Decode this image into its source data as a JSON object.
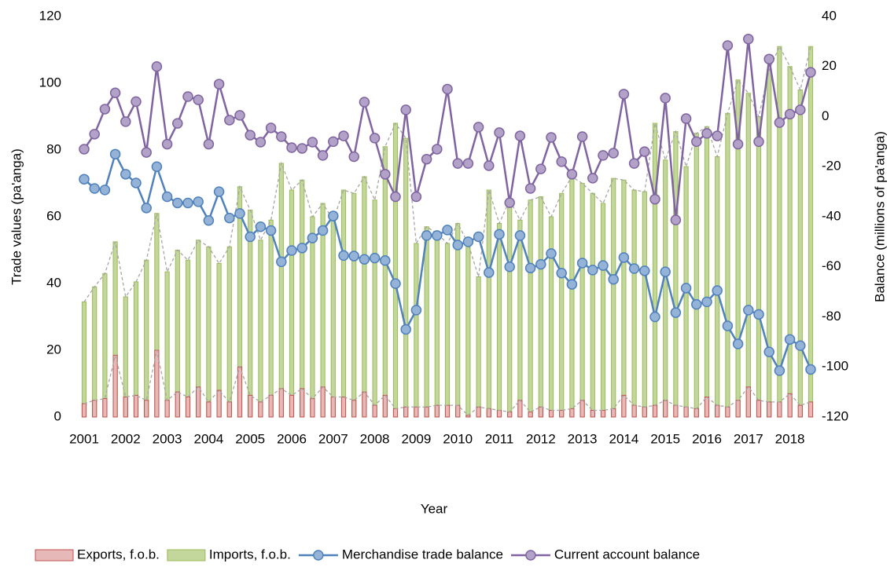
{
  "chart_data": {
    "type": "combo",
    "x_label": "Year",
    "y_label": "Trade values (pa'anga)",
    "y2_label": "Balance (millions of pa'anga)",
    "categories": [
      "2001",
      null,
      null,
      null,
      "2002",
      null,
      null,
      null,
      "2003",
      null,
      null,
      null,
      "2004",
      null,
      null,
      null,
      "2005",
      null,
      null,
      null,
      "2006",
      null,
      null,
      null,
      "2007",
      null,
      null,
      null,
      "2008",
      null,
      null,
      null,
      "2009",
      null,
      null,
      null,
      "2010",
      null,
      null,
      null,
      "2011",
      null,
      null,
      null,
      "2012",
      null,
      null,
      null,
      "2013",
      null,
      null,
      null,
      "2014",
      null,
      null,
      null,
      "2015",
      null,
      null,
      null,
      "2016",
      null,
      null,
      null,
      "2017",
      null,
      null,
      null,
      "2018",
      null,
      null
    ],
    "ylim": [
      0,
      120
    ],
    "yticks": [
      0,
      20,
      40,
      60,
      80,
      100,
      120
    ],
    "y2lim": [
      -120,
      40
    ],
    "y2ticks": [
      -120,
      -100,
      -80,
      -60,
      -40,
      -20,
      0,
      20,
      40
    ],
    "series": [
      {
        "name": "Exports, f.o.b.",
        "kind": "bar",
        "color": "#c0504d",
        "values": [
          4,
          5,
          5.5,
          18.5,
          6,
          6.5,
          5,
          20,
          5,
          7.5,
          6,
          9,
          4.5,
          8,
          4.5,
          15,
          6.5,
          4.5,
          6.5,
          8.5,
          6.5,
          8.5,
          5.5,
          9,
          6,
          6,
          5,
          7.5,
          3.5,
          6.5,
          2.5,
          3,
          3,
          3,
          3.5,
          3.5,
          3.5,
          0.5,
          3,
          2.5,
          2,
          1.5,
          5,
          1.5,
          3,
          2,
          2,
          2.5,
          5,
          2,
          2,
          2.5,
          6.5,
          3.5,
          3,
          3.5,
          5,
          3.5,
          3,
          2.5,
          6,
          3.5,
          3,
          5,
          9,
          5,
          4.5,
          4.5,
          7,
          3.5,
          4.5
        ]
      },
      {
        "name": "Imports, f.o.b.",
        "kind": "bar",
        "color": "#9bbb59",
        "values": [
          34.5,
          39,
          43,
          52.5,
          36,
          40.5,
          47,
          61,
          43.5,
          50,
          47,
          53,
          51,
          46,
          51,
          69,
          62,
          53,
          59,
          76,
          68,
          71,
          60,
          64,
          59,
          68,
          67,
          72,
          65,
          81,
          88,
          83.5,
          52,
          57,
          55,
          52,
          58,
          52,
          42,
          68,
          58,
          65,
          59,
          65,
          66,
          60,
          67,
          72,
          70,
          67,
          64,
          71.5,
          71,
          68,
          67.5,
          88,
          77,
          85.5,
          75,
          85,
          87,
          78,
          91,
          101,
          97,
          90,
          104,
          111,
          105,
          98,
          111
        ]
      },
      {
        "name": "Merchandise trade balance",
        "kind": "line",
        "axis": "y2",
        "color": "#4f81bd",
        "values": [
          -25,
          -28.7,
          -29.3,
          -15,
          -23,
          -26.5,
          -36.5,
          -20,
          -32,
          -34.5,
          -34.5,
          -34,
          -41.5,
          -30,
          -40.5,
          -38.7,
          -48,
          -44,
          -45.5,
          -58,
          -53.5,
          -52.5,
          -48.5,
          -45.5,
          -39.7,
          -55.5,
          -55.7,
          -57,
          -56.5,
          -57.5,
          -66.7,
          -85,
          -77.3,
          -47.5,
          -47.5,
          -45.3,
          -51.3,
          -50,
          -48,
          -62.3,
          -47,
          -60,
          -47.5,
          -60.5,
          -59,
          -54.7,
          -62.5,
          -67,
          -58.5,
          -61.3,
          -59.5,
          -65,
          -56.3,
          -60.7,
          -61.6,
          -80,
          -62,
          -78.3,
          -68.5,
          -75,
          -74,
          -69.5,
          -83.6,
          -90.8,
          -77.3,
          -79,
          -94,
          -101.5,
          -89,
          -91.5,
          -101
        ]
      },
      {
        "name": "Current account balance",
        "kind": "line",
        "axis": "y2",
        "color": "#8064a2",
        "values": [
          -13,
          -7,
          3,
          9.5,
          -2,
          6,
          -14.3,
          20,
          -11,
          -2.7,
          8,
          6.7,
          -11,
          13,
          -1.4,
          0.5,
          -7.4,
          -10.2,
          -4.5,
          -8,
          -12.4,
          -12.7,
          -10.2,
          -15.5,
          -10,
          -7.7,
          -16,
          5.8,
          -8.6,
          -23,
          -32,
          2.7,
          -32,
          -17,
          -13,
          11,
          -18.7,
          -18.7,
          -4.2,
          -19.6,
          -6.4,
          -34.4,
          -7.7,
          -28.7,
          -20.9,
          -8.3,
          -18,
          -23,
          -8,
          -24.6,
          -15.5,
          -14.6,
          9,
          -18.7,
          -14,
          -33,
          7.4,
          -41.3,
          -0.8,
          -10,
          -6.7,
          -7.7,
          28.4,
          -11,
          31,
          -10,
          23,
          -2.4,
          1,
          2.7,
          17.7
        ]
      }
    ]
  }
}
